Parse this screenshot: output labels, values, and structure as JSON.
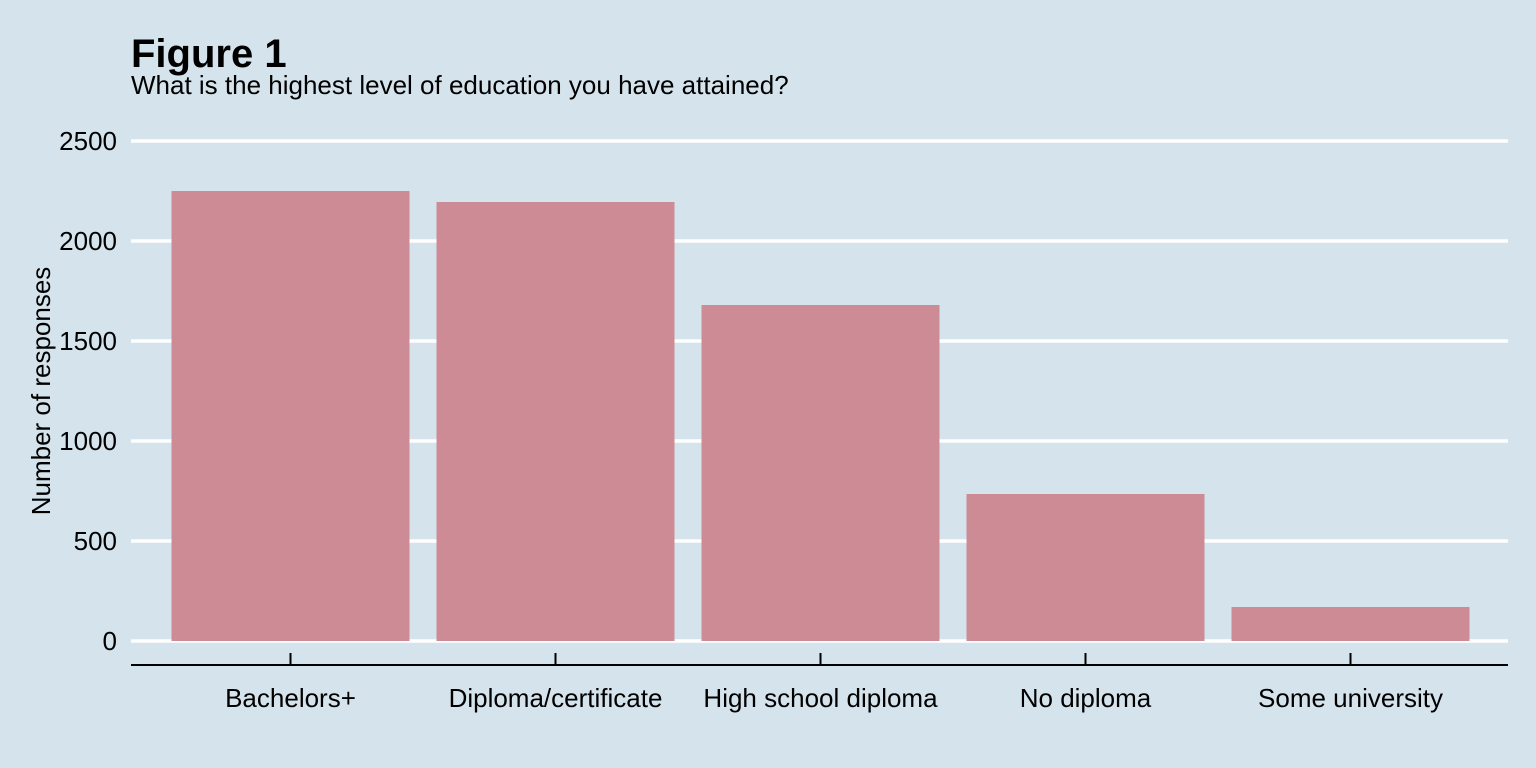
{
  "figure": {
    "title": "Figure 1",
    "subtitle": "What is the highest level of education you have attained?"
  },
  "colors": {
    "background": "#d5e4ec",
    "bar": "#cd8b95",
    "gridline": "#ffffff",
    "axis": "#000000"
  },
  "chart_data": {
    "type": "bar",
    "title": "Figure 1",
    "subtitle": "What is the highest level of education you have attained?",
    "categories": [
      "Bachelors+",
      "Diploma/certificate",
      "High school diploma",
      "No diploma",
      "Some university"
    ],
    "values": [
      2250,
      2195,
      1680,
      735,
      170
    ],
    "xlabel": "",
    "ylabel": "Number of responses",
    "ylim": [
      0,
      2500
    ],
    "yticks": [
      0,
      500,
      1000,
      1500,
      2000,
      2500
    ],
    "grid": "horizontal",
    "legend": "none"
  }
}
